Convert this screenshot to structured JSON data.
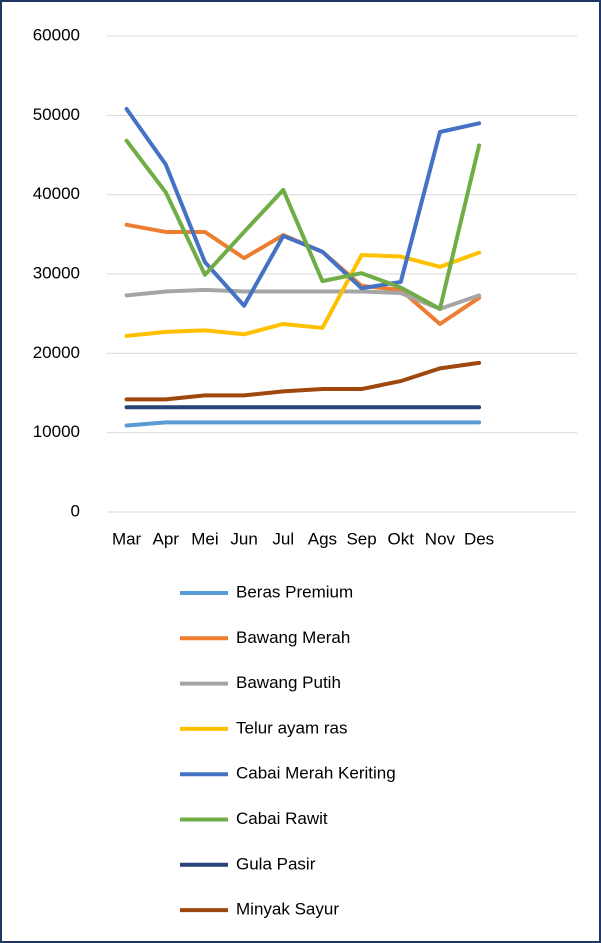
{
  "chart_data": {
    "type": "line",
    "categories": [
      "Mar",
      "Apr",
      "Mei",
      "Jun",
      "Jul",
      "Ags",
      "Sep",
      "Okt",
      "Nov",
      "Des",
      null,
      null
    ],
    "series": [
      {
        "name": "Beras Premium",
        "color": "#5B9BD5",
        "values": [
          10900,
          11300,
          11300,
          11300,
          11300,
          11300,
          11300,
          11300,
          11300,
          11300,
          null,
          null
        ]
      },
      {
        "name": "Bawang Merah",
        "color": "#ED7D31",
        "values": [
          36200,
          35300,
          35300,
          32000,
          34900,
          32800,
          28500,
          28000,
          23700,
          27000,
          null,
          null
        ]
      },
      {
        "name": "Bawang Putih",
        "color": "#A5A5A5",
        "values": [
          27300,
          27800,
          28000,
          27800,
          27800,
          27800,
          27800,
          27600,
          25600,
          27300,
          null,
          null
        ]
      },
      {
        "name": "Telur ayam ras",
        "color": "#FFC000",
        "values": [
          22200,
          22700,
          22900,
          22400,
          23700,
          23200,
          32400,
          32200,
          30900,
          32700,
          null,
          null
        ]
      },
      {
        "name": "Cabai Merah Keriting",
        "color": "#4472C4",
        "values": [
          50800,
          43800,
          31500,
          26000,
          34800,
          32800,
          28200,
          29000,
          47900,
          49000,
          null,
          null
        ]
      },
      {
        "name": "Cabai Rawit",
        "color": "#70AD47",
        "values": [
          46800,
          40300,
          29900,
          35300,
          40600,
          29100,
          30100,
          28300,
          25600,
          46200,
          null,
          null
        ]
      },
      {
        "name": "Gula Pasir",
        "color": "#264478",
        "values": [
          13200,
          13200,
          13200,
          13200,
          13200,
          13200,
          13200,
          13200,
          13200,
          13200,
          null,
          null
        ]
      },
      {
        "name": "Minyak Sayur",
        "color": "#9E480E",
        "values": [
          14200,
          14200,
          14700,
          14700,
          15200,
          15500,
          15500,
          16500,
          18100,
          18800,
          null,
          null
        ]
      }
    ],
    "ylim": [
      0,
      60000
    ],
    "yticks": [
      0,
      10000,
      20000,
      30000,
      40000,
      50000,
      60000
    ],
    "grid": true,
    "legend": "bottom"
  }
}
